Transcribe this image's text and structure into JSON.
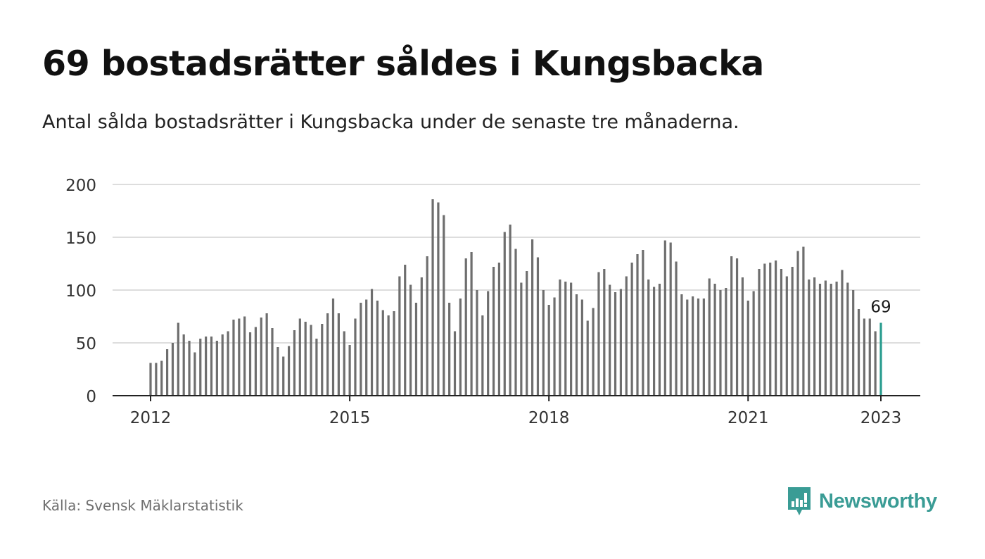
{
  "header": {
    "title": "69 bostadsrätter såldes i Kungsbacka",
    "subtitle": "Antal sålda bostadsrätter i Kungsbacka under de senaste tre månaderna."
  },
  "footer": {
    "source": "Källa: Svensk Mäklarstatistik",
    "brand": "Newsworthy"
  },
  "colors": {
    "bar": "#6e6e6e",
    "highlight": "#2a9d8f",
    "grid": "#dddddd",
    "axis": "#222222",
    "brand": "#3a9c95"
  },
  "chart_data": {
    "type": "bar",
    "title": "",
    "xlabel": "",
    "ylabel": "",
    "ylim": [
      0,
      200
    ],
    "yticks": [
      "0",
      "50",
      "100",
      "150",
      "200"
    ],
    "xticks": [
      "2012",
      "2015",
      "2018",
      "2021",
      "2023"
    ],
    "x_start": "2012-01",
    "x_end": "2023-01",
    "last_value_label": "69",
    "series": [
      {
        "values": [
          31,
          31,
          33,
          44,
          50,
          69,
          58,
          52,
          41,
          54,
          56,
          56,
          52,
          58,
          61,
          72,
          73,
          75,
          60,
          65,
          74,
          78,
          64,
          46,
          37,
          47,
          62,
          73,
          70,
          67,
          54,
          68,
          78,
          92,
          78,
          61,
          48,
          73,
          88,
          91,
          101,
          90,
          81,
          76,
          80,
          113,
          124,
          105,
          88,
          112,
          132,
          186,
          183,
          171,
          88,
          61,
          92,
          130,
          136,
          100,
          76,
          99,
          122,
          126,
          155,
          162,
          139,
          107,
          118,
          148,
          131,
          100,
          86,
          93,
          110,
          108,
          107,
          96,
          91,
          71,
          83,
          117,
          120,
          105,
          98,
          101,
          113,
          126,
          134,
          138,
          110,
          103,
          106,
          147,
          145,
          127,
          96,
          91,
          94,
          92,
          92,
          111,
          106,
          100,
          102,
          132,
          130,
          112,
          90,
          99,
          120,
          125,
          126,
          128,
          120,
          113,
          122,
          137,
          141,
          110,
          112,
          106,
          109,
          106,
          108,
          119,
          107,
          100,
          82,
          73,
          73,
          61,
          69
        ]
      }
    ]
  }
}
